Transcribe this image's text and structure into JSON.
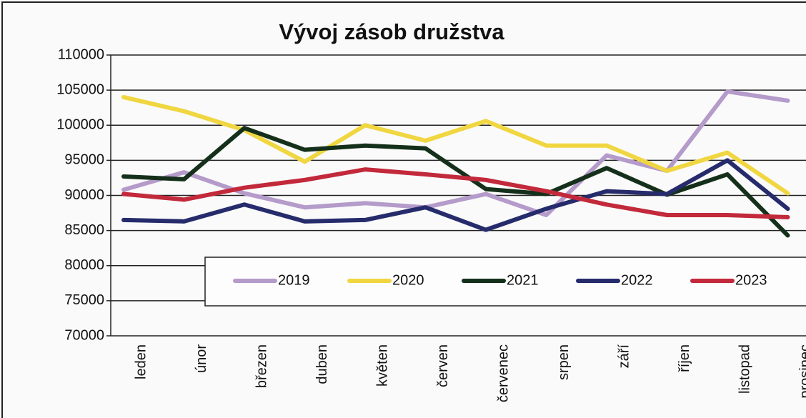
{
  "chart_data": {
    "type": "line",
    "title": "Vývoj zásob družstva",
    "categories": [
      "leden",
      "únor",
      "březen",
      "duben",
      "květen",
      "červen",
      "červenec",
      "srpen",
      "září",
      "říjen",
      "listopad",
      "prosinec"
    ],
    "series": [
      {
        "name": "2019",
        "color": "#b49bca",
        "values": [
          90800,
          93300,
          90300,
          88300,
          88900,
          88300,
          90200,
          87200,
          95700,
          93500,
          104800,
          103500
        ]
      },
      {
        "name": "2020",
        "color": "#f0d640",
        "values": [
          104000,
          102000,
          99300,
          94800,
          100000,
          97800,
          100600,
          97100,
          97100,
          93500,
          96100,
          90300
        ]
      },
      {
        "name": "2021",
        "color": "#15301a",
        "values": [
          92700,
          92300,
          99600,
          96500,
          97100,
          96700,
          90900,
          90200,
          93900,
          90100,
          93000,
          84300
        ]
      },
      {
        "name": "2022",
        "color": "#262b6c",
        "values": [
          86500,
          86300,
          88700,
          86300,
          86500,
          88300,
          85100,
          88100,
          90600,
          90200,
          95000,
          88100
        ]
      },
      {
        "name": "2023",
        "color": "#c2293b",
        "values": [
          90200,
          89400,
          91100,
          92200,
          93700,
          93000,
          92200,
          90600,
          88700,
          87200,
          87200,
          86900
        ]
      }
    ],
    "ylim": [
      70000,
      110000
    ],
    "yticks": [
      70000,
      75000,
      80000,
      85000,
      90000,
      95000,
      100000,
      105000,
      110000
    ],
    "grid": true,
    "legend": "lower center"
  }
}
